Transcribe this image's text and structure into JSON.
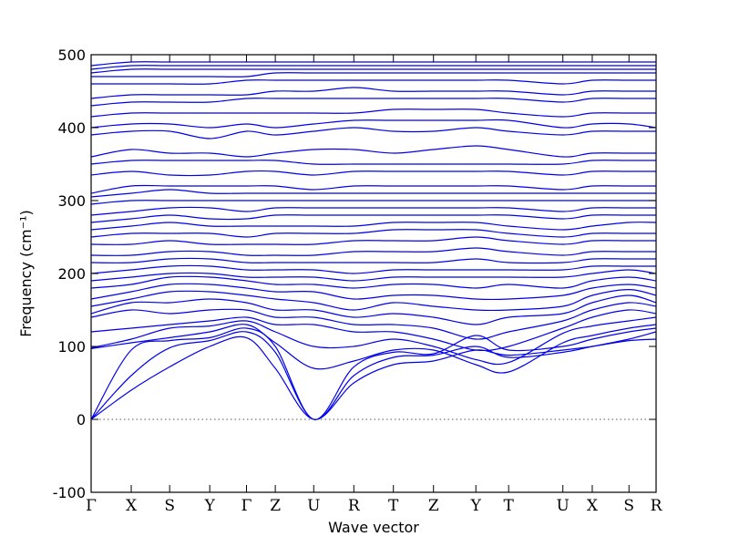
{
  "chart_data": {
    "type": "line",
    "title": "",
    "xlabel": "Wave vector",
    "ylabel": "Frequency (cm⁻¹)",
    "ylim": [
      -100,
      500
    ],
    "yticks": [
      -100,
      0,
      100,
      200,
      300,
      400,
      500
    ],
    "kpoints": [
      {
        "label": "Γ",
        "pos": 0.0
      },
      {
        "label": "X",
        "pos": 0.071
      },
      {
        "label": "S",
        "pos": 0.139
      },
      {
        "label": "Y",
        "pos": 0.21
      },
      {
        "label": "Γ",
        "pos": 0.275
      },
      {
        "label": "Z",
        "pos": 0.326
      },
      {
        "label": "U",
        "pos": 0.394
      },
      {
        "label": "R",
        "pos": 0.465
      },
      {
        "label": "T",
        "pos": 0.535
      },
      {
        "label": "Z",
        "pos": 0.606
      },
      {
        "label": "Y",
        "pos": 0.681
      },
      {
        "label": "T",
        "pos": 0.739
      },
      {
        "label": "U",
        "pos": 0.835
      },
      {
        "label": "X",
        "pos": 0.887
      },
      {
        "label": "S",
        "pos": 0.952
      },
      {
        "label": "R",
        "pos": 1.0
      }
    ],
    "zero_line": true,
    "line_color": "#0000ee",
    "series": [
      {
        "values": [
          0,
          40,
          72,
          100,
          112,
          70,
          0,
          50,
          75,
          80,
          95,
          88,
          95,
          100,
          108,
          110
        ]
      },
      {
        "values": [
          0,
          60,
          98,
          108,
          120,
          92,
          0,
          60,
          85,
          88,
          100,
          85,
          92,
          100,
          110,
          120
        ]
      },
      {
        "values": [
          0,
          95,
          108,
          112,
          125,
          100,
          0,
          72,
          92,
          90,
          115,
          95,
          100,
          110,
          120,
          125
        ]
      },
      {
        "values": [
          97,
          105,
          112,
          120,
          130,
          105,
          70,
          80,
          95,
          95,
          75,
          65,
          105,
          115,
          125,
          130
        ]
      },
      {
        "values": [
          98,
          110,
          125,
          128,
          135,
          120,
          100,
          100,
          110,
          100,
          82,
          78,
          118,
          128,
          135,
          140
        ]
      },
      {
        "values": [
          120,
          125,
          130,
          135,
          140,
          130,
          130,
          120,
          120,
          110,
          95,
          100,
          125,
          140,
          150,
          145
        ]
      },
      {
        "values": [
          140,
          150,
          145,
          150,
          150,
          140,
          140,
          130,
          130,
          125,
          110,
          120,
          135,
          150,
          160,
          155
        ]
      },
      {
        "values": [
          145,
          160,
          160,
          165,
          160,
          150,
          150,
          140,
          145,
          140,
          130,
          140,
          145,
          160,
          170,
          160
        ]
      },
      {
        "values": [
          155,
          165,
          175,
          175,
          170,
          165,
          160,
          150,
          160,
          155,
          150,
          150,
          155,
          170,
          178,
          170
        ]
      },
      {
        "values": [
          165,
          175,
          185,
          185,
          180,
          175,
          175,
          165,
          170,
          170,
          165,
          165,
          170,
          180,
          185,
          180
        ]
      },
      {
        "values": [
          180,
          185,
          195,
          195,
          190,
          185,
          185,
          180,
          185,
          185,
          180,
          185,
          180,
          190,
          195,
          190
        ]
      },
      {
        "values": [
          190,
          195,
          200,
          200,
          195,
          195,
          195,
          190,
          195,
          195,
          195,
          195,
          195,
          200,
          205,
          200
        ]
      },
      {
        "values": [
          200,
          205,
          210,
          210,
          205,
          205,
          205,
          200,
          205,
          205,
          205,
          205,
          205,
          210,
          210,
          210
        ]
      },
      {
        "values": [
          215,
          215,
          220,
          220,
          215,
          215,
          215,
          215,
          215,
          215,
          220,
          215,
          215,
          220,
          220,
          220
        ]
      },
      {
        "values": [
          225,
          225,
          230,
          230,
          225,
          225,
          225,
          230,
          230,
          230,
          235,
          230,
          225,
          230,
          230,
          230
        ]
      },
      {
        "values": [
          240,
          240,
          245,
          240,
          240,
          240,
          240,
          245,
          245,
          245,
          250,
          245,
          240,
          245,
          245,
          245
        ]
      },
      {
        "values": [
          250,
          255,
          255,
          255,
          250,
          255,
          255,
          255,
          260,
          260,
          260,
          255,
          250,
          255,
          255,
          255
        ]
      },
      {
        "values": [
          260,
          265,
          270,
          265,
          265,
          265,
          265,
          265,
          270,
          270,
          270,
          265,
          260,
          265,
          270,
          270
        ]
      },
      {
        "values": [
          270,
          275,
          280,
          275,
          275,
          280,
          280,
          280,
          280,
          280,
          280,
          280,
          275,
          280,
          280,
          280
        ]
      },
      {
        "values": [
          280,
          285,
          290,
          290,
          285,
          290,
          290,
          290,
          290,
          290,
          290,
          290,
          285,
          290,
          290,
          290
        ]
      },
      {
        "values": [
          295,
          300,
          300,
          300,
          300,
          300,
          300,
          300,
          300,
          300,
          300,
          300,
          300,
          300,
          300,
          300
        ]
      },
      {
        "values": [
          305,
          310,
          315,
          310,
          310,
          310,
          310,
          310,
          310,
          310,
          310,
          310,
          310,
          310,
          310,
          310
        ]
      },
      {
        "values": [
          310,
          320,
          320,
          320,
          320,
          320,
          315,
          320,
          320,
          320,
          320,
          320,
          315,
          320,
          320,
          320
        ]
      },
      {
        "values": [
          335,
          340,
          335,
          335,
          340,
          340,
          335,
          340,
          340,
          340,
          340,
          340,
          335,
          340,
          340,
          340
        ]
      },
      {
        "values": [
          350,
          355,
          355,
          355,
          355,
          355,
          350,
          350,
          350,
          350,
          350,
          350,
          350,
          355,
          355,
          355
        ]
      },
      {
        "values": [
          360,
          370,
          365,
          365,
          360,
          365,
          370,
          370,
          365,
          370,
          375,
          370,
          360,
          365,
          365,
          365
        ]
      },
      {
        "values": [
          390,
          395,
          395,
          385,
          395,
          390,
          395,
          400,
          395,
          395,
          400,
          395,
          390,
          395,
          395,
          395
        ]
      },
      {
        "values": [
          400,
          405,
          405,
          400,
          405,
          400,
          405,
          410,
          410,
          410,
          410,
          410,
          400,
          405,
          405,
          400
        ]
      },
      {
        "values": [
          415,
          420,
          420,
          420,
          420,
          420,
          420,
          420,
          425,
          425,
          425,
          420,
          415,
          420,
          420,
          420
        ]
      },
      {
        "values": [
          430,
          435,
          435,
          435,
          440,
          440,
          440,
          440,
          440,
          440,
          440,
          440,
          435,
          440,
          440,
          440
        ]
      },
      {
        "values": [
          440,
          445,
          445,
          445,
          445,
          450,
          450,
          455,
          450,
          450,
          450,
          450,
          445,
          450,
          450,
          450
        ]
      },
      {
        "values": [
          460,
          460,
          460,
          460,
          465,
          465,
          465,
          465,
          465,
          465,
          465,
          465,
          460,
          465,
          465,
          465
        ]
      },
      {
        "values": [
          470,
          470,
          470,
          470,
          470,
          475,
          475,
          475,
          475,
          475,
          475,
          475,
          475,
          475,
          475,
          475
        ]
      },
      {
        "values": [
          475,
          480,
          480,
          480,
          480,
          480,
          480,
          480,
          480,
          480,
          480,
          480,
          480,
          480,
          480,
          480
        ]
      },
      {
        "values": [
          480,
          485,
          485,
          485,
          485,
          485,
          485,
          485,
          485,
          485,
          485,
          485,
          485,
          485,
          485,
          485
        ]
      },
      {
        "values": [
          485,
          490,
          490,
          490,
          490,
          490,
          490,
          490,
          490,
          490,
          490,
          490,
          490,
          490,
          490,
          490
        ]
      }
    ]
  }
}
